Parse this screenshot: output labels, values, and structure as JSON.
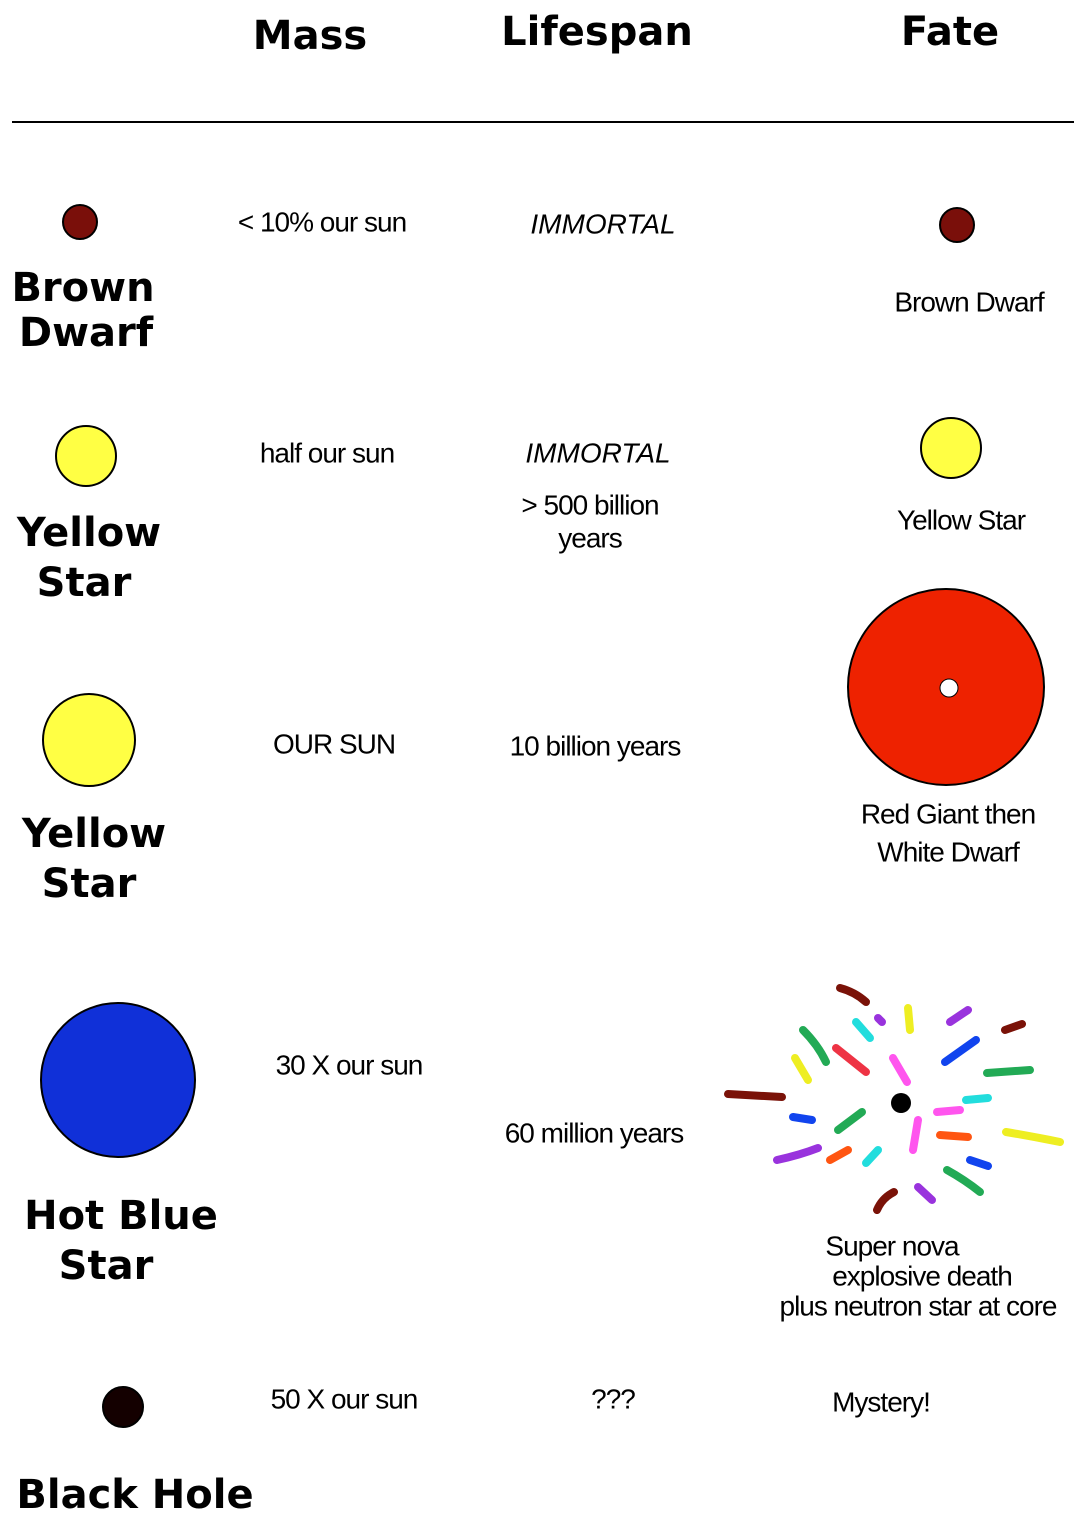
{
  "header": {
    "columns": [
      "Mass",
      "Lifespan",
      "Fate"
    ]
  },
  "rows": [
    {
      "name": [
        "Brown",
        "Dwarf"
      ],
      "mass": "< 10% our sun",
      "lifespan": [
        "IMMORTAL"
      ],
      "fate": [
        "Brown Dwarf"
      ]
    },
    {
      "name": [
        "Yellow",
        "Star"
      ],
      "mass": "half our sun",
      "lifespan": [
        "IMMORTAL",
        "> 500 billion",
        "years"
      ],
      "fate": [
        "Yellow Star"
      ]
    },
    {
      "name": [
        "Yellow",
        "Star"
      ],
      "mass": "OUR SUN",
      "lifespan": [
        "10 billion years"
      ],
      "fate": [
        "Red Giant  then",
        "White Dwarf"
      ]
    },
    {
      "name": [
        "Hot Blue",
        "Star"
      ],
      "mass": "30 X our sun",
      "lifespan": [
        "60 million years"
      ],
      "fate": [
        "Super nova",
        "explosive  death",
        "plus neutron star at core"
      ]
    },
    {
      "name": [
        "Black Hole"
      ],
      "mass": "50 X our sun",
      "lifespan": [
        "???"
      ],
      "fate": [
        "Mystery!"
      ]
    }
  ]
}
